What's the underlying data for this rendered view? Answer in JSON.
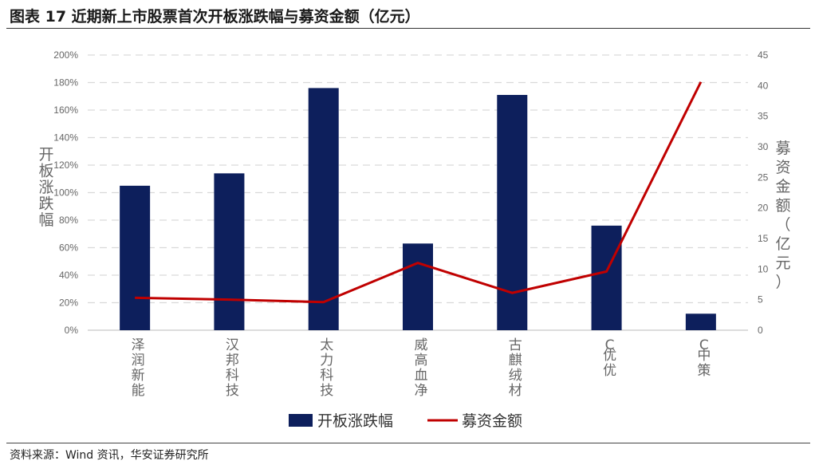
{
  "header": {
    "title": "图表 17 近期新上市股票首次开板涨跌幅与募资金额（亿元）"
  },
  "footer": {
    "source": "资料来源：Wind 资讯，华安证券研究所"
  },
  "colors": {
    "bar": "#0d1f5c",
    "line": "#c00000",
    "grid": "#d9d9d9",
    "tick": "#666666"
  },
  "chart_data": {
    "type": "bar",
    "categories": [
      "泽润新能",
      "汉邦科技",
      "太力科技",
      "威高血净",
      "古麒绒材",
      "C优优",
      "C中策"
    ],
    "series": [
      {
        "name": "开板涨跌幅",
        "type": "bar",
        "axis": "left",
        "values": [
          105,
          114,
          176,
          63,
          171,
          76,
          12
        ]
      },
      {
        "name": "募资金额",
        "type": "line",
        "axis": "right",
        "values": [
          5.3,
          5.0,
          4.6,
          11.0,
          6.1,
          9.6,
          40.6
        ]
      }
    ],
    "ylabel": "开板涨跌幅",
    "ylabel_right": "募资金额（亿元）",
    "ylim": [
      0,
      200
    ],
    "ylim_right": [
      0,
      45
    ],
    "yticks": [
      "0%",
      "20%",
      "40%",
      "60%",
      "80%",
      "100%",
      "120%",
      "140%",
      "160%",
      "180%",
      "200%"
    ],
    "yticks_right": [
      "0",
      "5",
      "10",
      "15",
      "20",
      "25",
      "30",
      "35",
      "40",
      "45"
    ],
    "grid": true,
    "legend": "bottom"
  }
}
